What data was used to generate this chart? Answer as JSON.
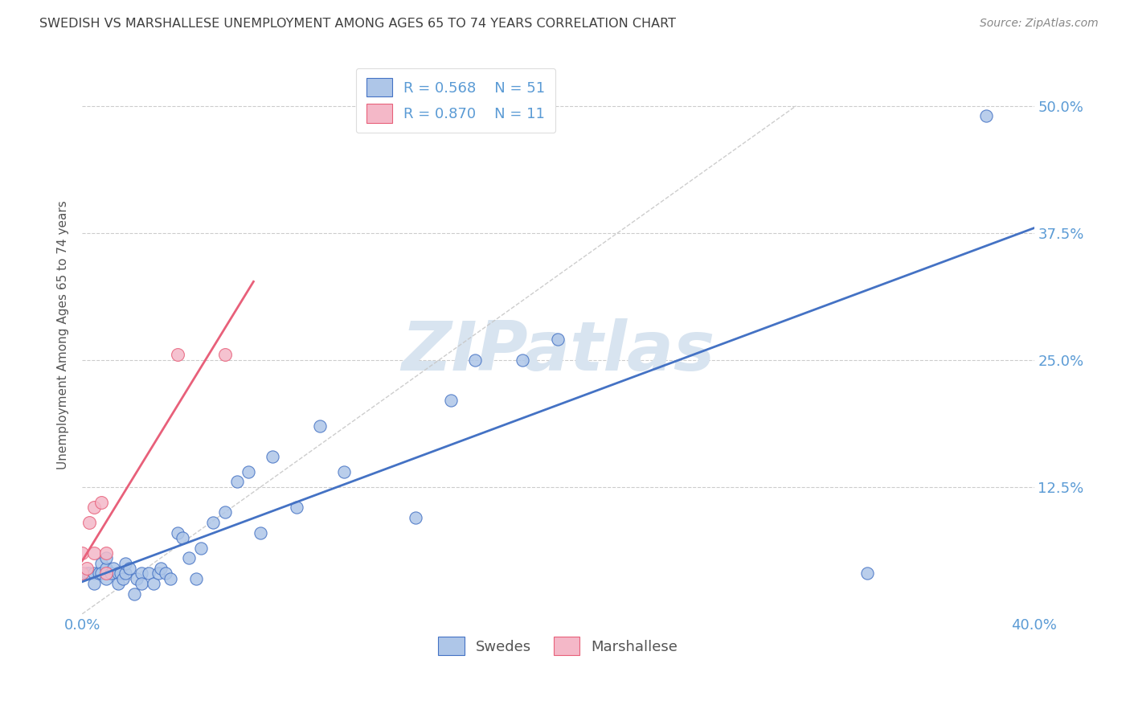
{
  "title": "SWEDISH VS MARSHALLESE UNEMPLOYMENT AMONG AGES 65 TO 74 YEARS CORRELATION CHART",
  "source": "Source: ZipAtlas.com",
  "ylabel": "Unemployment Among Ages 65 to 74 years",
  "xlim": [
    0,
    0.4
  ],
  "ylim": [
    0,
    0.55
  ],
  "yticks": [
    0.0,
    0.125,
    0.25,
    0.375,
    0.5
  ],
  "yticklabels": [
    "",
    "12.5%",
    "25.0%",
    "37.5%",
    "50.0%"
  ],
  "legend_r_swedish": "R = 0.568",
  "legend_n_swedish": "N = 51",
  "legend_r_marshallese": "R = 0.870",
  "legend_n_marshallese": "N = 11",
  "swedish_color": "#aec6e8",
  "marshallese_color": "#f4b8c8",
  "swedish_line_color": "#4472c4",
  "marshallese_line_color": "#e8607a",
  "ref_line_color": "#c8c8c8",
  "axis_color": "#5b9bd5",
  "title_color": "#404040",
  "watermark_color": "#d8e4f0",
  "grid_color": "#cccccc",
  "swedes_x": [
    0.0,
    0.002,
    0.003,
    0.005,
    0.005,
    0.007,
    0.008,
    0.008,
    0.01,
    0.01,
    0.01,
    0.012,
    0.013,
    0.015,
    0.015,
    0.016,
    0.017,
    0.018,
    0.018,
    0.02,
    0.022,
    0.023,
    0.025,
    0.025,
    0.028,
    0.03,
    0.032,
    0.033,
    0.035,
    0.037,
    0.04,
    0.042,
    0.045,
    0.048,
    0.05,
    0.055,
    0.06,
    0.065,
    0.07,
    0.075,
    0.08,
    0.09,
    0.1,
    0.11,
    0.14,
    0.155,
    0.165,
    0.185,
    0.2,
    0.33,
    0.38
  ],
  "swedes_y": [
    0.04,
    0.04,
    0.04,
    0.04,
    0.03,
    0.04,
    0.05,
    0.04,
    0.035,
    0.045,
    0.055,
    0.04,
    0.045,
    0.04,
    0.03,
    0.04,
    0.035,
    0.04,
    0.05,
    0.045,
    0.02,
    0.035,
    0.04,
    0.03,
    0.04,
    0.03,
    0.04,
    0.045,
    0.04,
    0.035,
    0.08,
    0.075,
    0.055,
    0.035,
    0.065,
    0.09,
    0.1,
    0.13,
    0.14,
    0.08,
    0.155,
    0.105,
    0.185,
    0.14,
    0.095,
    0.21,
    0.25,
    0.25,
    0.27,
    0.04,
    0.49
  ],
  "marshallese_x": [
    0.0,
    0.0,
    0.002,
    0.003,
    0.005,
    0.005,
    0.008,
    0.01,
    0.01,
    0.04,
    0.06
  ],
  "marshallese_y": [
    0.04,
    0.06,
    0.045,
    0.09,
    0.06,
    0.105,
    0.11,
    0.04,
    0.06,
    0.255,
    0.255
  ],
  "figsize": [
    14.06,
    8.92
  ],
  "dpi": 100
}
